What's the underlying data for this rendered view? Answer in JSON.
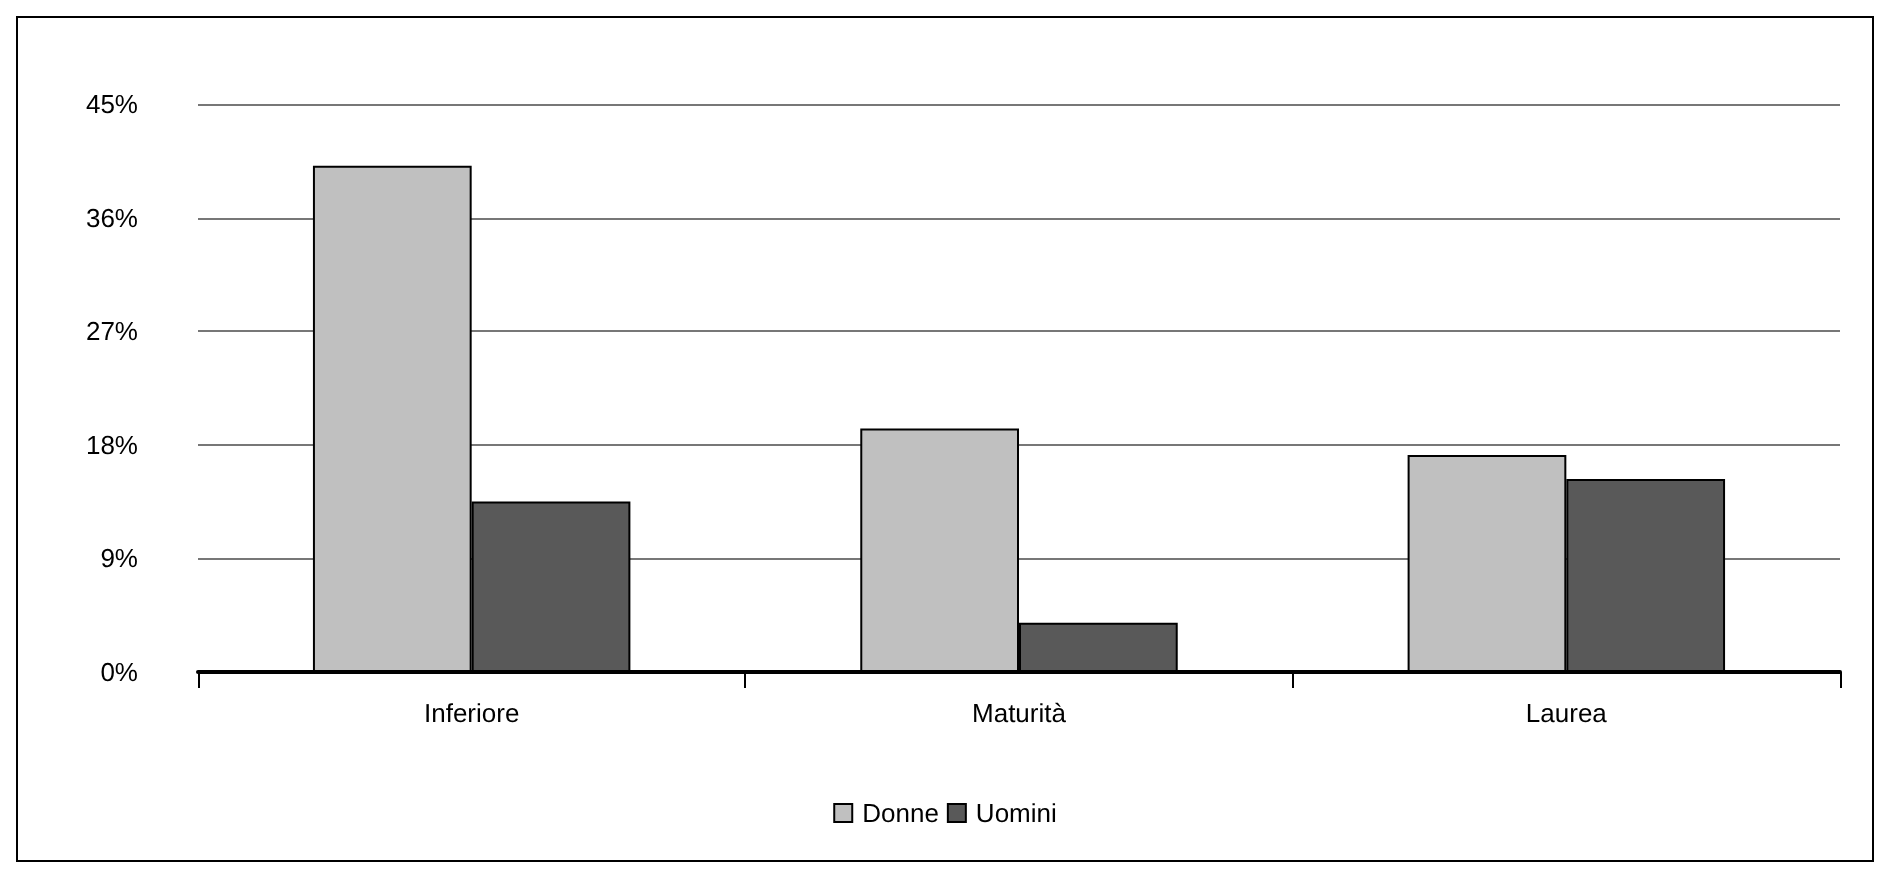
{
  "chart_data": {
    "type": "bar",
    "categories": [
      "Inferiore",
      "Maturità",
      "Laurea"
    ],
    "series": [
      {
        "name": "Donne",
        "color": "#c0c0c0",
        "values": [
          40.1,
          19.3,
          17.2
        ]
      },
      {
        "name": "Uomini",
        "color": "#595959",
        "values": [
          13.5,
          3.9,
          15.3
        ]
      }
    ],
    "ylim": [
      0,
      45
    ],
    "yticks": [
      {
        "value": 0,
        "label": "0%"
      },
      {
        "value": 9,
        "label": "9%"
      },
      {
        "value": 18,
        "label": "18%"
      },
      {
        "value": 27,
        "label": "27%"
      },
      {
        "value": 36,
        "label": "36%"
      },
      {
        "value": 45,
        "label": "45%"
      }
    ],
    "grid": "y",
    "legend": "bottom"
  }
}
